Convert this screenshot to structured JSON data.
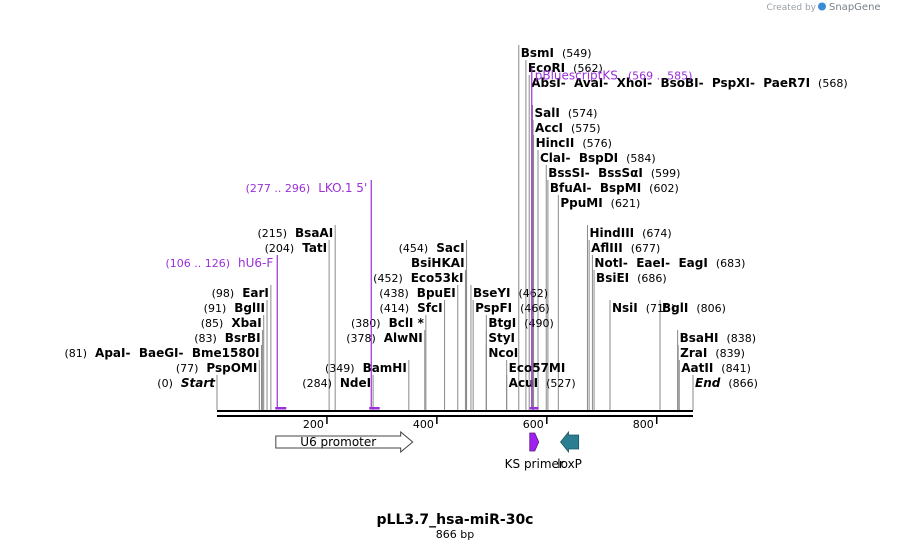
{
  "sequence": {
    "name": "pLL3.7_hsa-miR-30c",
    "length_label": "866 bp",
    "length": 866
  },
  "credit": {
    "prefix": "Created by",
    "brand": "SnapGene",
    "brand_color": "#3a8bd6"
  },
  "colors": {
    "primer": "#9b30d9",
    "ks_primer_fill": "#a020f0",
    "loxp_fill": "#2b7d91",
    "promoter_fill": "#ffffff"
  },
  "ticks": [
    {
      "pos": 200,
      "label": "200"
    },
    {
      "pos": 400,
      "label": "400"
    },
    {
      "pos": 600,
      "label": "600"
    },
    {
      "pos": 800,
      "label": "800"
    }
  ],
  "sites": [
    {
      "row": 0,
      "names": [
        "Start"
      ],
      "pos_label": "(0)",
      "site": 0,
      "italic": true,
      "side": "left"
    },
    {
      "row": 0,
      "names": [
        "NdeI"
      ],
      "pos_label": "(284)",
      "site": 284,
      "side": "left"
    },
    {
      "row": 0,
      "names": [
        "AcuI"
      ],
      "pos_label": "(527)",
      "site": 527,
      "side": "right"
    },
    {
      "row": 0,
      "names": [
        "End"
      ],
      "pos_label": "(866)",
      "site": 866,
      "italic": true,
      "side": "right"
    },
    {
      "row": 1,
      "names": [
        "Eco57MI"
      ],
      "pos_label": "",
      "site": 527,
      "side": "right"
    },
    {
      "row": 1,
      "names": [
        "PspOMI"
      ],
      "pos_label": "(77)",
      "site": 77,
      "side": "left"
    },
    {
      "row": 1,
      "names": [
        "BamHI"
      ],
      "pos_label": "(349)",
      "site": 349,
      "side": "left"
    },
    {
      "row": 1,
      "names": [
        "AatII"
      ],
      "pos_label": "(841)",
      "site": 841,
      "side": "right"
    },
    {
      "row": 2,
      "names": [
        "ApaI",
        "BaeGI",
        "Bme1580I"
      ],
      "pos_label": "(81)",
      "site": 81,
      "side": "left"
    },
    {
      "row": 2,
      "names": [
        "NcoI"
      ],
      "pos_label": "",
      "site": 490,
      "side": "right"
    },
    {
      "row": 2,
      "names": [
        "ZraI"
      ],
      "pos_label": "(839)",
      "site": 839,
      "side": "right"
    },
    {
      "row": 3,
      "names": [
        "BsrBI"
      ],
      "pos_label": "(83)",
      "site": 83,
      "side": "left"
    },
    {
      "row": 3,
      "names": [
        "AlwNI"
      ],
      "pos_label": "(378)",
      "site": 378,
      "side": "left"
    },
    {
      "row": 3,
      "names": [
        "StyI"
      ],
      "pos_label": "",
      "site": 490,
      "side": "right"
    },
    {
      "row": 3,
      "names": [
        "BsaHI"
      ],
      "pos_label": "(838)",
      "site": 838,
      "side": "right"
    },
    {
      "row": 4,
      "names": [
        "XbaI"
      ],
      "pos_label": "(85)",
      "site": 85,
      "side": "left"
    },
    {
      "row": 4,
      "names": [
        "BclI *"
      ],
      "pos_label": "(380)",
      "site": 380,
      "side": "left"
    },
    {
      "row": 4,
      "names": [
        "BtgI"
      ],
      "pos_label": "(490)",
      "site": 490,
      "side": "right"
    },
    {
      "row": 5,
      "names": [
        "BglII"
      ],
      "pos_label": "(91)",
      "site": 91,
      "side": "left"
    },
    {
      "row": 5,
      "names": [
        "SfcI"
      ],
      "pos_label": "(414)",
      "site": 414,
      "side": "left"
    },
    {
      "row": 5,
      "names": [
        "PspFI"
      ],
      "pos_label": "(466)",
      "site": 466,
      "side": "right"
    },
    {
      "row": 5,
      "names": [
        "NsiI"
      ],
      "pos_label": "(715)",
      "site": 715,
      "side": "right"
    },
    {
      "row": 5,
      "names": [
        "BglI"
      ],
      "pos_label": "(806)",
      "site": 806,
      "side": "right"
    },
    {
      "row": 6,
      "names": [
        "EarI"
      ],
      "pos_label": "(98)",
      "site": 98,
      "side": "left"
    },
    {
      "row": 6,
      "names": [
        "BpuEI"
      ],
      "pos_label": "(438)",
      "site": 438,
      "side": "left"
    },
    {
      "row": 6,
      "names": [
        "BseYI"
      ],
      "pos_label": "(462)",
      "site": 462,
      "side": "right"
    },
    {
      "row": 7,
      "names": [
        "Eco53kI"
      ],
      "pos_label": "(452)",
      "site": 452,
      "side": "left"
    },
    {
      "row": 7,
      "names": [
        "BsiEI"
      ],
      "pos_label": "(686)",
      "site": 686,
      "side": "right"
    },
    {
      "row": 8,
      "names": [
        "BsiHKAI"
      ],
      "pos_label": "",
      "site": 454,
      "side": "left"
    },
    {
      "row": 8,
      "names": [
        "NotI",
        "EaeI",
        "EagI"
      ],
      "pos_label": "(683)",
      "site": 683,
      "side": "right"
    },
    {
      "row": 9,
      "names": [
        "TatI"
      ],
      "pos_label": "(204)",
      "site": 204,
      "side": "left"
    },
    {
      "row": 9,
      "names": [
        "SacI"
      ],
      "pos_label": "(454)",
      "site": 454,
      "side": "left"
    },
    {
      "row": 9,
      "names": [
        "AflIII"
      ],
      "pos_label": "(677)",
      "site": 677,
      "side": "right"
    },
    {
      "row": 10,
      "names": [
        "BsaAI"
      ],
      "pos_label": "(215)",
      "site": 215,
      "side": "left"
    },
    {
      "row": 10,
      "names": [
        "HindIII"
      ],
      "pos_label": "(674)",
      "site": 674,
      "side": "right"
    },
    {
      "row": 12,
      "names": [
        "PpuMI"
      ],
      "pos_label": "(621)",
      "site": 621,
      "side": "right"
    },
    {
      "row": 13,
      "names": [
        "BfuAI",
        "BspMI"
      ],
      "pos_label": "(602)",
      "site": 602,
      "side": "right"
    },
    {
      "row": 14,
      "names": [
        "BssSI",
        "BssSαI"
      ],
      "pos_label": "(599)",
      "site": 599,
      "side": "right"
    },
    {
      "row": 15,
      "names": [
        "ClaI",
        "BspDI"
      ],
      "pos_label": "(584)",
      "site": 584,
      "side": "right"
    },
    {
      "row": 16,
      "names": [
        "HincII"
      ],
      "pos_label": "(576)",
      "site": 576,
      "side": "right"
    },
    {
      "row": 17,
      "names": [
        "AccI"
      ],
      "pos_label": "(575)",
      "site": 575,
      "side": "right"
    },
    {
      "row": 18,
      "names": [
        "SalI"
      ],
      "pos_label": "(574)",
      "site": 574,
      "side": "right"
    },
    {
      "row": 20,
      "names": [
        "AbsI",
        "AvaI",
        "XhoI",
        "BsoBI",
        "PspXI",
        "PaeR7I"
      ],
      "pos_label": "(568)",
      "site": 568,
      "side": "right"
    },
    {
      "row": 21,
      "names": [
        "EcoRI"
      ],
      "pos_label": "(562)",
      "site": 562,
      "side": "right"
    },
    {
      "row": 22,
      "names": [
        "BsmI"
      ],
      "pos_label": "(549)",
      "site": 549,
      "side": "right"
    }
  ],
  "primers": [
    {
      "name": "hU6-F",
      "range_label": "(106 .. 126)",
      "start": 106,
      "end": 126,
      "row": 8,
      "side": "left"
    },
    {
      "name": "LKO.1 5'",
      "range_label": "(277 .. 296)",
      "start": 277,
      "end": 296,
      "row": 13,
      "side": "left"
    },
    {
      "name": "pBluescriptKS",
      "range_label": "(569 .. 585)",
      "start": 569,
      "end": 585,
      "row": 20.5,
      "side": "right"
    }
  ],
  "features": [
    {
      "name": "U6 promoter",
      "type": "arrow-right",
      "start": 107,
      "end": 356
    },
    {
      "name": "KS primer",
      "type": "primer-right",
      "start": 569,
      "end": 585
    },
    {
      "name": "loxP",
      "type": "arrow-left",
      "start": 625,
      "end": 658
    }
  ]
}
